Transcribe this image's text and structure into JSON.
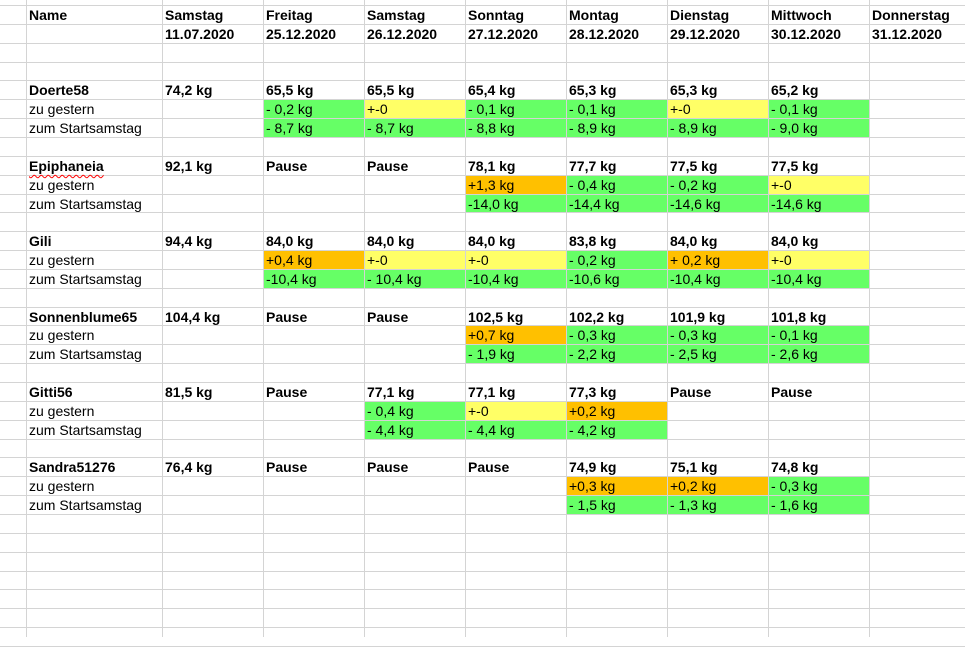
{
  "header": {
    "name_label": "Name",
    "columns": [
      {
        "day": "Samstag",
        "date": "11.07.2020"
      },
      {
        "day": "Freitag",
        "date": "25.12.2020"
      },
      {
        "day": "Samstag",
        "date": "26.12.2020"
      },
      {
        "day": "Sonntag",
        "date": "27.12.2020"
      },
      {
        "day": "Montag",
        "date": "28.12.2020"
      },
      {
        "day": "Dienstag",
        "date": "29.12.2020"
      },
      {
        "day": "Mittwoch",
        "date": "30.12.2020"
      },
      {
        "day": "Donnerstag",
        "date": "31.12.2020"
      }
    ]
  },
  "row_labels": {
    "delta": "zu gestern",
    "total": "zum Startsamstag"
  },
  "colors": {
    "green": "#66ff66",
    "yellow": "#ffff66",
    "orange": "#ffc000",
    "grid": "#d4d4d4"
  },
  "participants": [
    {
      "name": "Doerte58",
      "weights": [
        "74,2 kg",
        "65,5 kg",
        "65,5 kg",
        "65,4 kg",
        "65,3 kg",
        "65,3 kg",
        "65,2 kg",
        ""
      ],
      "delta": [
        {
          "v": "",
          "c": ""
        },
        {
          "v": "- 0,2 kg",
          "c": "green"
        },
        {
          "v": "+-0",
          "c": "yellow"
        },
        {
          "v": "- 0,1 kg",
          "c": "green"
        },
        {
          "v": "- 0,1 kg",
          "c": "green"
        },
        {
          "v": "+-0",
          "c": "yellow"
        },
        {
          "v": "- 0,1 kg",
          "c": "green"
        },
        {
          "v": "",
          "c": ""
        }
      ],
      "total": [
        {
          "v": "",
          "c": ""
        },
        {
          "v": "- 8,7 kg",
          "c": "green"
        },
        {
          "v": "- 8,7 kg",
          "c": "green"
        },
        {
          "v": "- 8,8 kg",
          "c": "green"
        },
        {
          "v": "- 8,9 kg",
          "c": "green"
        },
        {
          "v": "- 8,9 kg",
          "c": "green"
        },
        {
          "v": "- 9,0 kg",
          "c": "green"
        },
        {
          "v": "",
          "c": ""
        }
      ]
    },
    {
      "name": "Epiphaneia",
      "weights": [
        "92,1 kg",
        "Pause",
        "Pause",
        "78,1 kg",
        "77,7 kg",
        "77,5 kg",
        "77,5 kg",
        ""
      ],
      "delta": [
        {
          "v": "",
          "c": ""
        },
        {
          "v": "",
          "c": ""
        },
        {
          "v": "",
          "c": ""
        },
        {
          "v": "+1,3 kg",
          "c": "orange"
        },
        {
          "v": "- 0,4 kg",
          "c": "green"
        },
        {
          "v": "- 0,2 kg",
          "c": "green"
        },
        {
          "v": "+-0",
          "c": "yellow"
        },
        {
          "v": "",
          "c": ""
        }
      ],
      "total": [
        {
          "v": "",
          "c": ""
        },
        {
          "v": "",
          "c": ""
        },
        {
          "v": "",
          "c": ""
        },
        {
          "v": "-14,0 kg",
          "c": "green"
        },
        {
          "v": "-14,4 kg",
          "c": "green"
        },
        {
          "v": "-14,6 kg",
          "c": "green"
        },
        {
          "v": "-14,6 kg",
          "c": "green"
        },
        {
          "v": "",
          "c": ""
        }
      ]
    },
    {
      "name": "Gili",
      "weights": [
        "94,4 kg",
        "84,0 kg",
        "84,0 kg",
        "84,0 kg",
        "83,8 kg",
        "84,0 kg",
        "84,0 kg",
        ""
      ],
      "delta": [
        {
          "v": "",
          "c": ""
        },
        {
          "v": "+0,4 kg",
          "c": "orange"
        },
        {
          "v": "+-0",
          "c": "yellow"
        },
        {
          "v": "+-0",
          "c": "yellow"
        },
        {
          "v": "- 0,2 kg",
          "c": "green"
        },
        {
          "v": "+ 0,2 kg",
          "c": "orange"
        },
        {
          "v": "+-0",
          "c": "yellow"
        },
        {
          "v": "",
          "c": ""
        }
      ],
      "total": [
        {
          "v": "",
          "c": ""
        },
        {
          "v": "-10,4 kg",
          "c": "green"
        },
        {
          "v": "- 10,4 kg",
          "c": "green"
        },
        {
          "v": "-10,4 kg",
          "c": "green"
        },
        {
          "v": "-10,6 kg",
          "c": "green"
        },
        {
          "v": "-10,4 kg",
          "c": "green"
        },
        {
          "v": "-10,4 kg",
          "c": "green"
        },
        {
          "v": "",
          "c": ""
        }
      ]
    },
    {
      "name": "Sonnenblume65",
      "weights": [
        "104,4 kg",
        "Pause",
        "Pause",
        "102,5 kg",
        "102,2 kg",
        "101,9 kg",
        "101,8 kg",
        ""
      ],
      "delta": [
        {
          "v": "",
          "c": ""
        },
        {
          "v": "",
          "c": ""
        },
        {
          "v": "",
          "c": ""
        },
        {
          "v": "+0,7 kg",
          "c": "orange"
        },
        {
          "v": "- 0,3 kg",
          "c": "green"
        },
        {
          "v": "- 0,3 kg",
          "c": "green"
        },
        {
          "v": "- 0,1 kg",
          "c": "green"
        },
        {
          "v": "",
          "c": ""
        }
      ],
      "total": [
        {
          "v": "",
          "c": ""
        },
        {
          "v": "",
          "c": ""
        },
        {
          "v": "",
          "c": ""
        },
        {
          "v": "- 1,9 kg",
          "c": "green"
        },
        {
          "v": "- 2,2 kg",
          "c": "green"
        },
        {
          "v": "- 2,5 kg",
          "c": "green"
        },
        {
          "v": "- 2,6 kg",
          "c": "green"
        },
        {
          "v": "",
          "c": ""
        }
      ]
    },
    {
      "name": "Gitti56",
      "weights": [
        "81,5 kg",
        "Pause",
        "77,1 kg",
        "77,1 kg",
        "77,3 kg",
        "Pause",
        "Pause",
        ""
      ],
      "delta": [
        {
          "v": "",
          "c": ""
        },
        {
          "v": "",
          "c": ""
        },
        {
          "v": "- 0,4 kg",
          "c": "green"
        },
        {
          "v": "+-0",
          "c": "yellow"
        },
        {
          "v": "+0,2 kg",
          "c": "orange"
        },
        {
          "v": "",
          "c": ""
        },
        {
          "v": "",
          "c": ""
        },
        {
          "v": "",
          "c": ""
        }
      ],
      "total": [
        {
          "v": "",
          "c": ""
        },
        {
          "v": "",
          "c": ""
        },
        {
          "v": "- 4,4 kg",
          "c": "green"
        },
        {
          "v": "- 4,4 kg",
          "c": "green"
        },
        {
          "v": "- 4,2 kg",
          "c": "green"
        },
        {
          "v": "",
          "c": ""
        },
        {
          "v": "",
          "c": ""
        },
        {
          "v": "",
          "c": ""
        }
      ]
    },
    {
      "name": "Sandra51276",
      "weights": [
        "76,4 kg",
        "Pause",
        "Pause",
        "Pause",
        "74,9 kg",
        "75,1 kg",
        "74,8 kg",
        ""
      ],
      "delta": [
        {
          "v": "",
          "c": ""
        },
        {
          "v": "",
          "c": ""
        },
        {
          "v": "",
          "c": ""
        },
        {
          "v": "",
          "c": ""
        },
        {
          "v": "+0,3 kg",
          "c": "orange"
        },
        {
          "v": "+0,2 kg",
          "c": "orange"
        },
        {
          "v": "- 0,3 kg",
          "c": "green"
        },
        {
          "v": "",
          "c": ""
        }
      ],
      "total": [
        {
          "v": "",
          "c": ""
        },
        {
          "v": "",
          "c": ""
        },
        {
          "v": "",
          "c": ""
        },
        {
          "v": "",
          "c": ""
        },
        {
          "v": "- 1,5 kg",
          "c": "green"
        },
        {
          "v": "- 1,3 kg",
          "c": "green"
        },
        {
          "v": "- 1,6 kg",
          "c": "green"
        },
        {
          "v": "",
          "c": ""
        }
      ]
    }
  ]
}
